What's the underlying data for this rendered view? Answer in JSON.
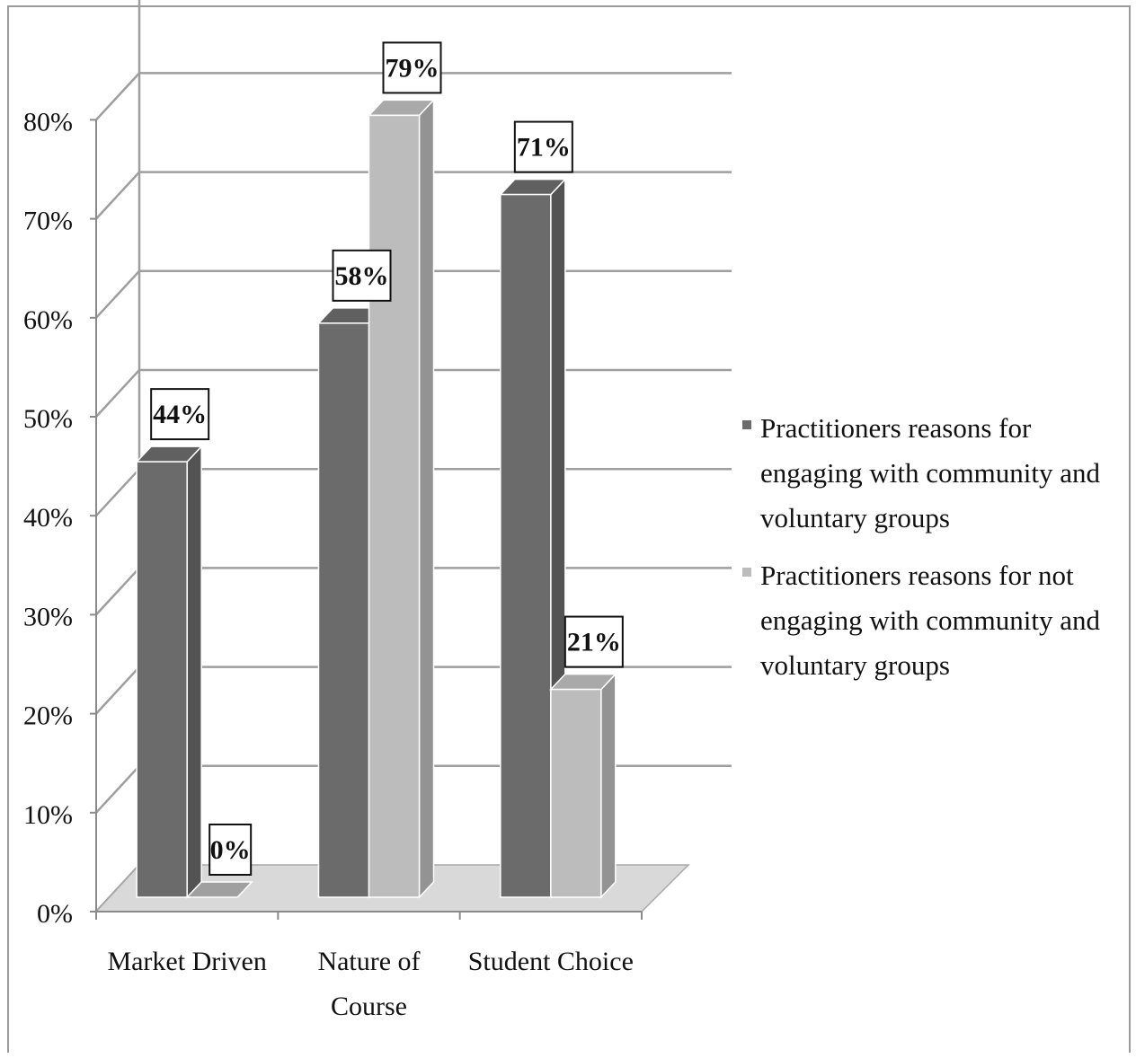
{
  "chart_data": {
    "type": "bar",
    "categories": [
      "Market Driven",
      "Nature of Course",
      "Student Choice"
    ],
    "series": [
      {
        "name": "Practitioners reasons for engaging with community and voluntary groups",
        "values": [
          44,
          58,
          71
        ],
        "labels": [
          "44%",
          "58%",
          "71%"
        ],
        "color": "#6b6b6b"
      },
      {
        "name": "Practitioners reasons for not engaging with community and voluntary groups",
        "values": [
          0,
          79,
          21
        ],
        "labels": [
          "0%",
          "79%",
          "21%"
        ],
        "color": "#bcbcbc"
      }
    ],
    "yticks": [
      "0%",
      "10%",
      "20%",
      "30%",
      "40%",
      "50%",
      "60%",
      "70%",
      "80%"
    ],
    "ylim": [
      0,
      80
    ],
    "grid": true,
    "legend_position": "right"
  }
}
